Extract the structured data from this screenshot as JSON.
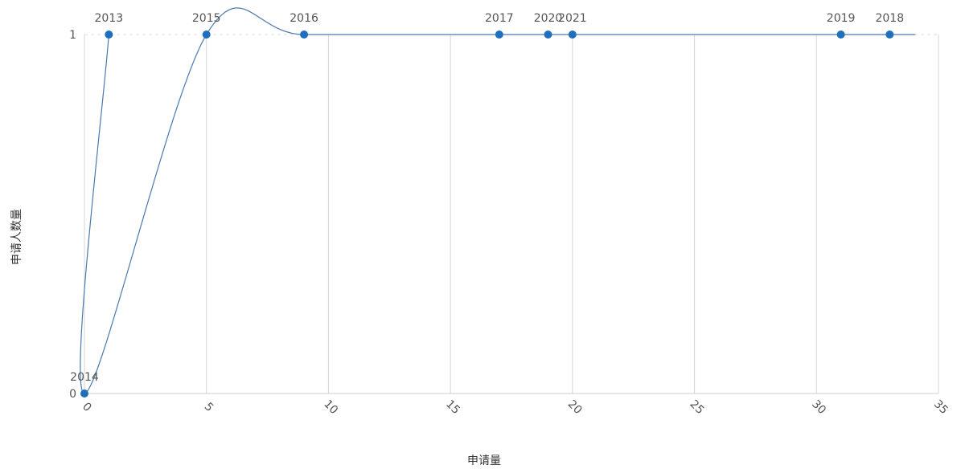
{
  "chart_data": {
    "type": "scatter",
    "xlabel": "申请量",
    "ylabel": "申请人数量",
    "xlim": [
      0,
      35
    ],
    "ylim": [
      0,
      1
    ],
    "x_ticks": [
      0,
      5,
      10,
      15,
      20,
      25,
      30,
      35
    ],
    "y_ticks": [
      0,
      1
    ],
    "grid": "vertical",
    "connect_points": true,
    "smooth_line": true,
    "series_color": "#1f6fbf",
    "line_color": "#4a78b0",
    "points": [
      {
        "label": "2013",
        "x": 1,
        "y": 1
      },
      {
        "label": "2014",
        "x": 0,
        "y": 0
      },
      {
        "label": "2015",
        "x": 5,
        "y": 1
      },
      {
        "label": "2016",
        "x": 9,
        "y": 1
      },
      {
        "label": "2017",
        "x": 17,
        "y": 1
      },
      {
        "label": "2018",
        "x": 33,
        "y": 1
      },
      {
        "label": "2019",
        "x": 31,
        "y": 1
      },
      {
        "label": "2020",
        "x": 19,
        "y": 1
      },
      {
        "label": "2021",
        "x": 20,
        "y": 1
      }
    ]
  }
}
